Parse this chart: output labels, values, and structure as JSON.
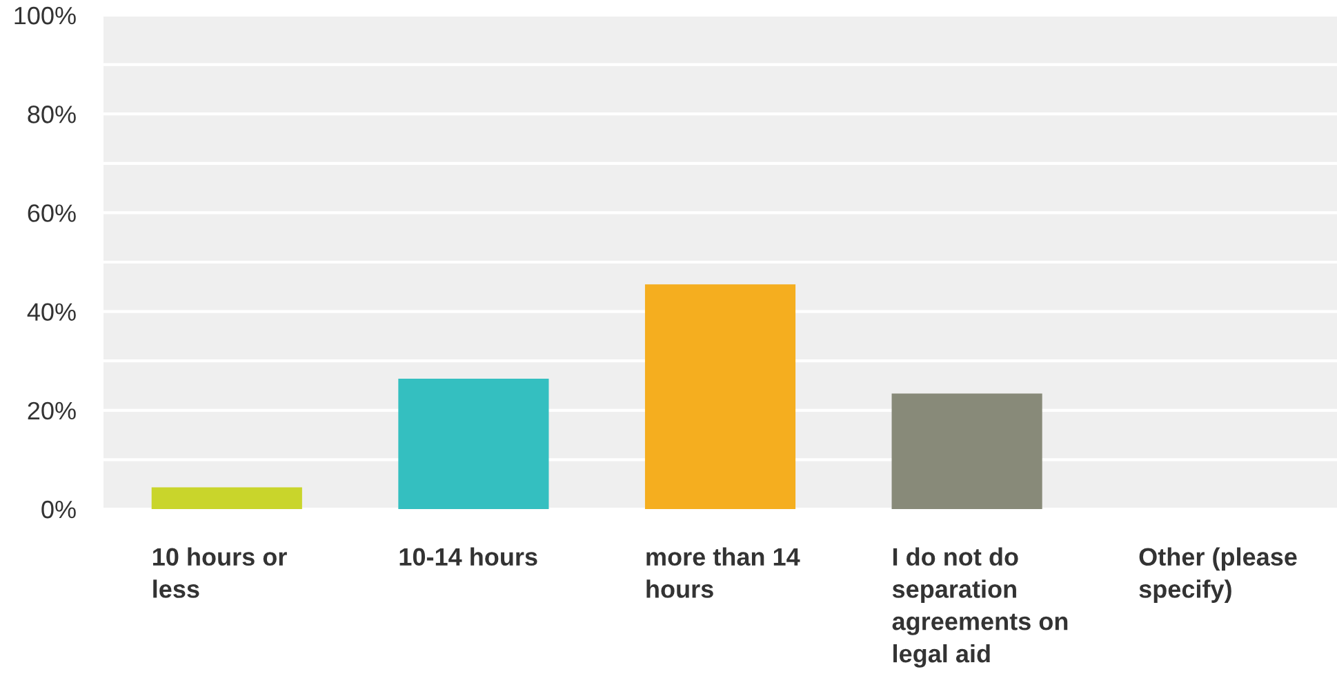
{
  "chart_data": {
    "type": "bar",
    "categories": [
      "10 hours or less",
      "10-14 hours",
      "more than 14 hours",
      "I do not do separation agreements on legal aid",
      "Other (please specify)"
    ],
    "values": [
      4.4,
      26.4,
      45.5,
      23.4,
      0
    ],
    "colors": [
      "#c9d52b",
      "#34bfc0",
      "#f5ae1f",
      "#888a79",
      "#888a79"
    ],
    "ylim": [
      0,
      100
    ],
    "yticks": [
      {
        "value": 0,
        "label": "0%"
      },
      {
        "value": 10,
        "label": null
      },
      {
        "value": 20,
        "label": "20%"
      },
      {
        "value": 30,
        "label": null
      },
      {
        "value": 40,
        "label": "40%"
      },
      {
        "value": 50,
        "label": null
      },
      {
        "value": 60,
        "label": "60%"
      },
      {
        "value": 70,
        "label": null
      },
      {
        "value": 80,
        "label": "80%"
      },
      {
        "value": 90,
        "label": null
      },
      {
        "value": 100,
        "label": "100%"
      }
    ],
    "grid": "y"
  }
}
